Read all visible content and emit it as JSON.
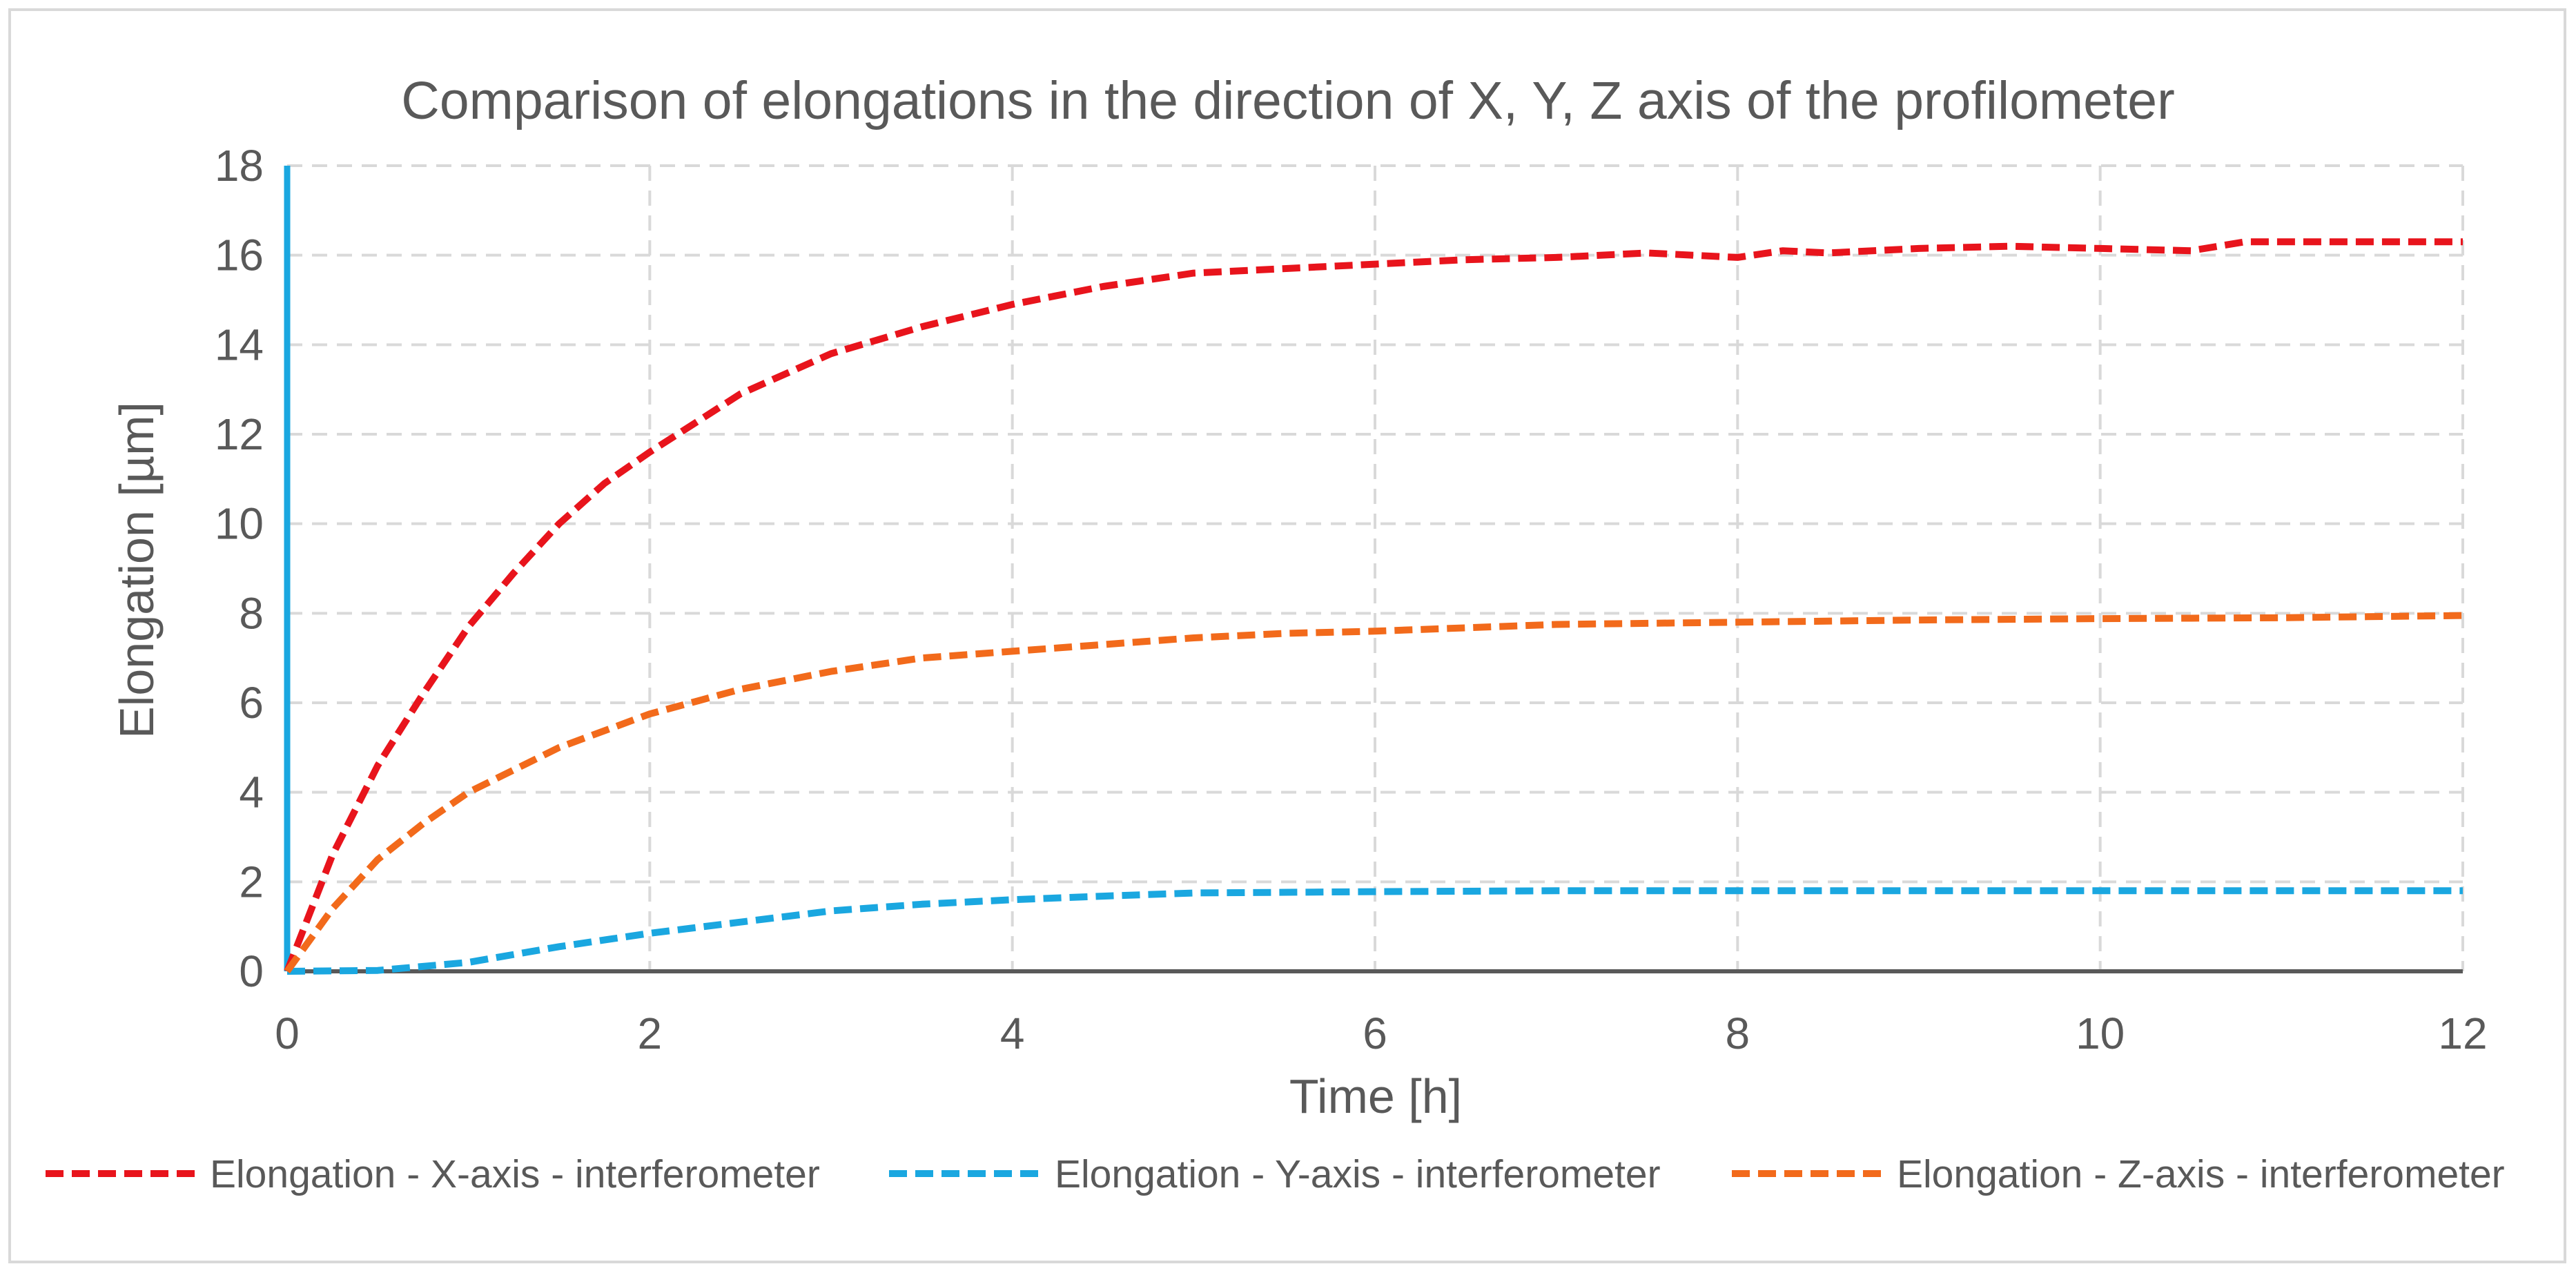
{
  "chart_data": {
    "type": "line",
    "title": "Comparison of elongations in the direction of X, Y, Z axis of the profilometer",
    "xlabel": "Time [h]",
    "ylabel": "Elongation [µm]",
    "xlim": [
      0,
      12
    ],
    "ylim": [
      0,
      18
    ],
    "x_ticks": [
      "0",
      "2",
      "4",
      "6",
      "8",
      "10",
      "12"
    ],
    "y_ticks": [
      "0",
      "2",
      "4",
      "6",
      "8",
      "10",
      "12",
      "14",
      "16",
      "18"
    ],
    "grid": true,
    "legend_position": "bottom",
    "series": [
      {
        "name": "Elongation - X-axis - interferometer",
        "color": "#e8141c",
        "x": [
          0,
          0.25,
          0.5,
          0.75,
          1.0,
          1.25,
          1.5,
          1.75,
          2.0,
          2.5,
          3.0,
          3.5,
          4.0,
          4.5,
          5.0,
          5.5,
          6.0,
          6.5,
          7.0,
          7.5,
          8.0,
          8.25,
          8.5,
          9.0,
          9.5,
          10.0,
          10.5,
          10.8,
          11.0,
          11.5,
          12.0
        ],
        "values": [
          0,
          2.6,
          4.6,
          6.2,
          7.7,
          8.9,
          10.0,
          10.9,
          11.6,
          12.9,
          13.8,
          14.4,
          14.9,
          15.3,
          15.6,
          15.7,
          15.8,
          15.9,
          15.95,
          16.05,
          15.95,
          16.1,
          16.05,
          16.15,
          16.2,
          16.15,
          16.1,
          16.3,
          16.3,
          16.3,
          16.3
        ]
      },
      {
        "name": "Elongation - Y-axis - interferometer",
        "color": "#1aa7e0",
        "x": [
          0,
          0.5,
          1.0,
          1.5,
          2.0,
          2.5,
          3.0,
          3.5,
          4.0,
          4.5,
          5.0,
          6.0,
          7.0,
          8.0,
          9.0,
          10.0,
          11.0,
          12.0
        ],
        "values": [
          0,
          0.02,
          0.2,
          0.55,
          0.85,
          1.1,
          1.35,
          1.5,
          1.6,
          1.68,
          1.75,
          1.78,
          1.8,
          1.8,
          1.8,
          1.8,
          1.8,
          1.8
        ]
      },
      {
        "name": "Elongation - Z-axis - interferometer",
        "color": "#f26a1b",
        "x": [
          0,
          0.25,
          0.5,
          0.75,
          1.0,
          1.5,
          2.0,
          2.5,
          3.0,
          3.5,
          4.0,
          4.5,
          5.0,
          5.5,
          6.0,
          7.0,
          8.0,
          9.0,
          10.0,
          11.0,
          12.0
        ],
        "values": [
          0,
          1.4,
          2.5,
          3.3,
          4.0,
          5.0,
          5.75,
          6.3,
          6.7,
          7.0,
          7.15,
          7.3,
          7.45,
          7.55,
          7.6,
          7.75,
          7.8,
          7.85,
          7.88,
          7.9,
          7.95
        ]
      }
    ]
  }
}
